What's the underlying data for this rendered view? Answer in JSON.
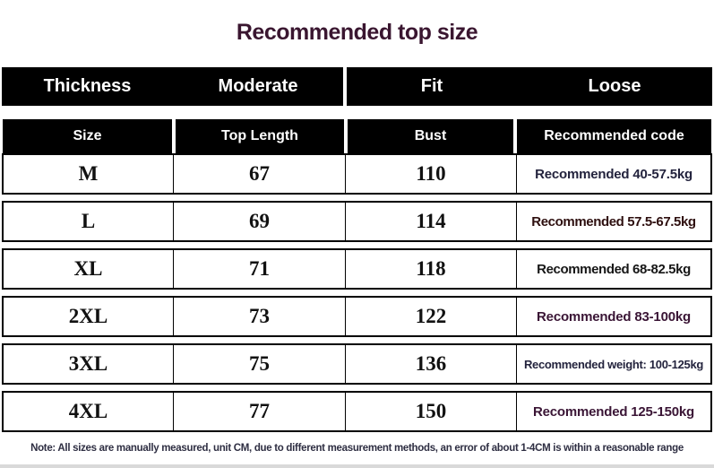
{
  "title": "Recommended top size",
  "fit_header": {
    "thickness": "Thickness",
    "moderate": "Moderate",
    "fit": "Fit",
    "loose": "Loose"
  },
  "note": "Note: All sizes are manually measured, unit CM, due to different measurement methods, an error of about 1-4CM is within a reasonable range",
  "colors": {
    "title_text": "#3a1630",
    "header_bg": "#000000",
    "header_text": "#ffffff",
    "border": "#000000",
    "code_navy": "#23233d",
    "code_maroon": "#2e0f0f",
    "code_black": "#161616",
    "code_purple": "#3a1535"
  },
  "chart_data": {
    "type": "table",
    "title": "Recommended top size",
    "columns": [
      "Size",
      "Top Length",
      "Bust",
      "Recommended code"
    ],
    "rows": [
      [
        "M",
        "67",
        "110",
        "Recommended 40-57.5kg"
      ],
      [
        "L",
        "69",
        "114",
        "Recommended 57.5-67.5kg"
      ],
      [
        "XL",
        "71",
        "118",
        "Recommended 68-82.5kg"
      ],
      [
        "2XL",
        "73",
        "122",
        "Recommended 83-100kg"
      ],
      [
        "3XL",
        "75",
        "136",
        "Recommended weight: 100-125kg"
      ],
      [
        "4XL",
        "77",
        "150",
        "Recommended 125-150kg"
      ]
    ],
    "units": "CM"
  }
}
